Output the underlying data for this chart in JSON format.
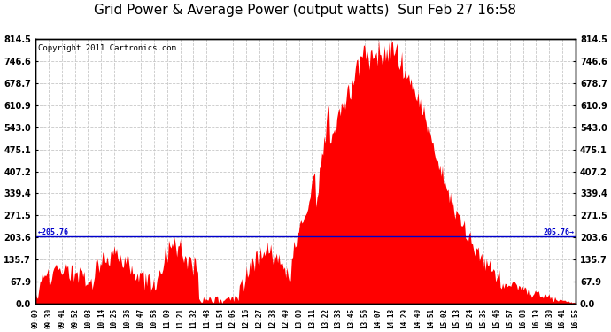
{
  "title": "Grid Power & Average Power (output watts)  Sun Feb 27 16:58",
  "copyright": "Copyright 2011 Cartronics.com",
  "avg_line_y": 205.76,
  "ymin": 0.0,
  "ymax": 814.5,
  "yticks": [
    0.0,
    67.9,
    135.7,
    203.6,
    271.5,
    339.4,
    407.2,
    475.1,
    543.0,
    610.9,
    678.7,
    746.6,
    814.5
  ],
  "bar_color": "#ff0000",
  "line_color": "#0000cc",
  "bg_color": "#ffffff",
  "grid_color": "#c8c8c8",
  "title_fontsize": 11,
  "copyright_fontsize": 6.5,
  "xtick_labels": [
    "09:09",
    "09:30",
    "09:41",
    "09:52",
    "10:03",
    "10:14",
    "10:25",
    "10:36",
    "10:47",
    "10:58",
    "11:09",
    "11:21",
    "11:32",
    "11:43",
    "11:54",
    "12:05",
    "12:16",
    "12:27",
    "12:38",
    "12:49",
    "13:00",
    "13:11",
    "13:22",
    "13:33",
    "13:45",
    "13:56",
    "14:07",
    "14:18",
    "14:29",
    "14:40",
    "14:51",
    "15:02",
    "15:13",
    "15:24",
    "15:35",
    "15:46",
    "15:57",
    "16:08",
    "16:19",
    "16:30",
    "16:41",
    "16:55"
  ]
}
